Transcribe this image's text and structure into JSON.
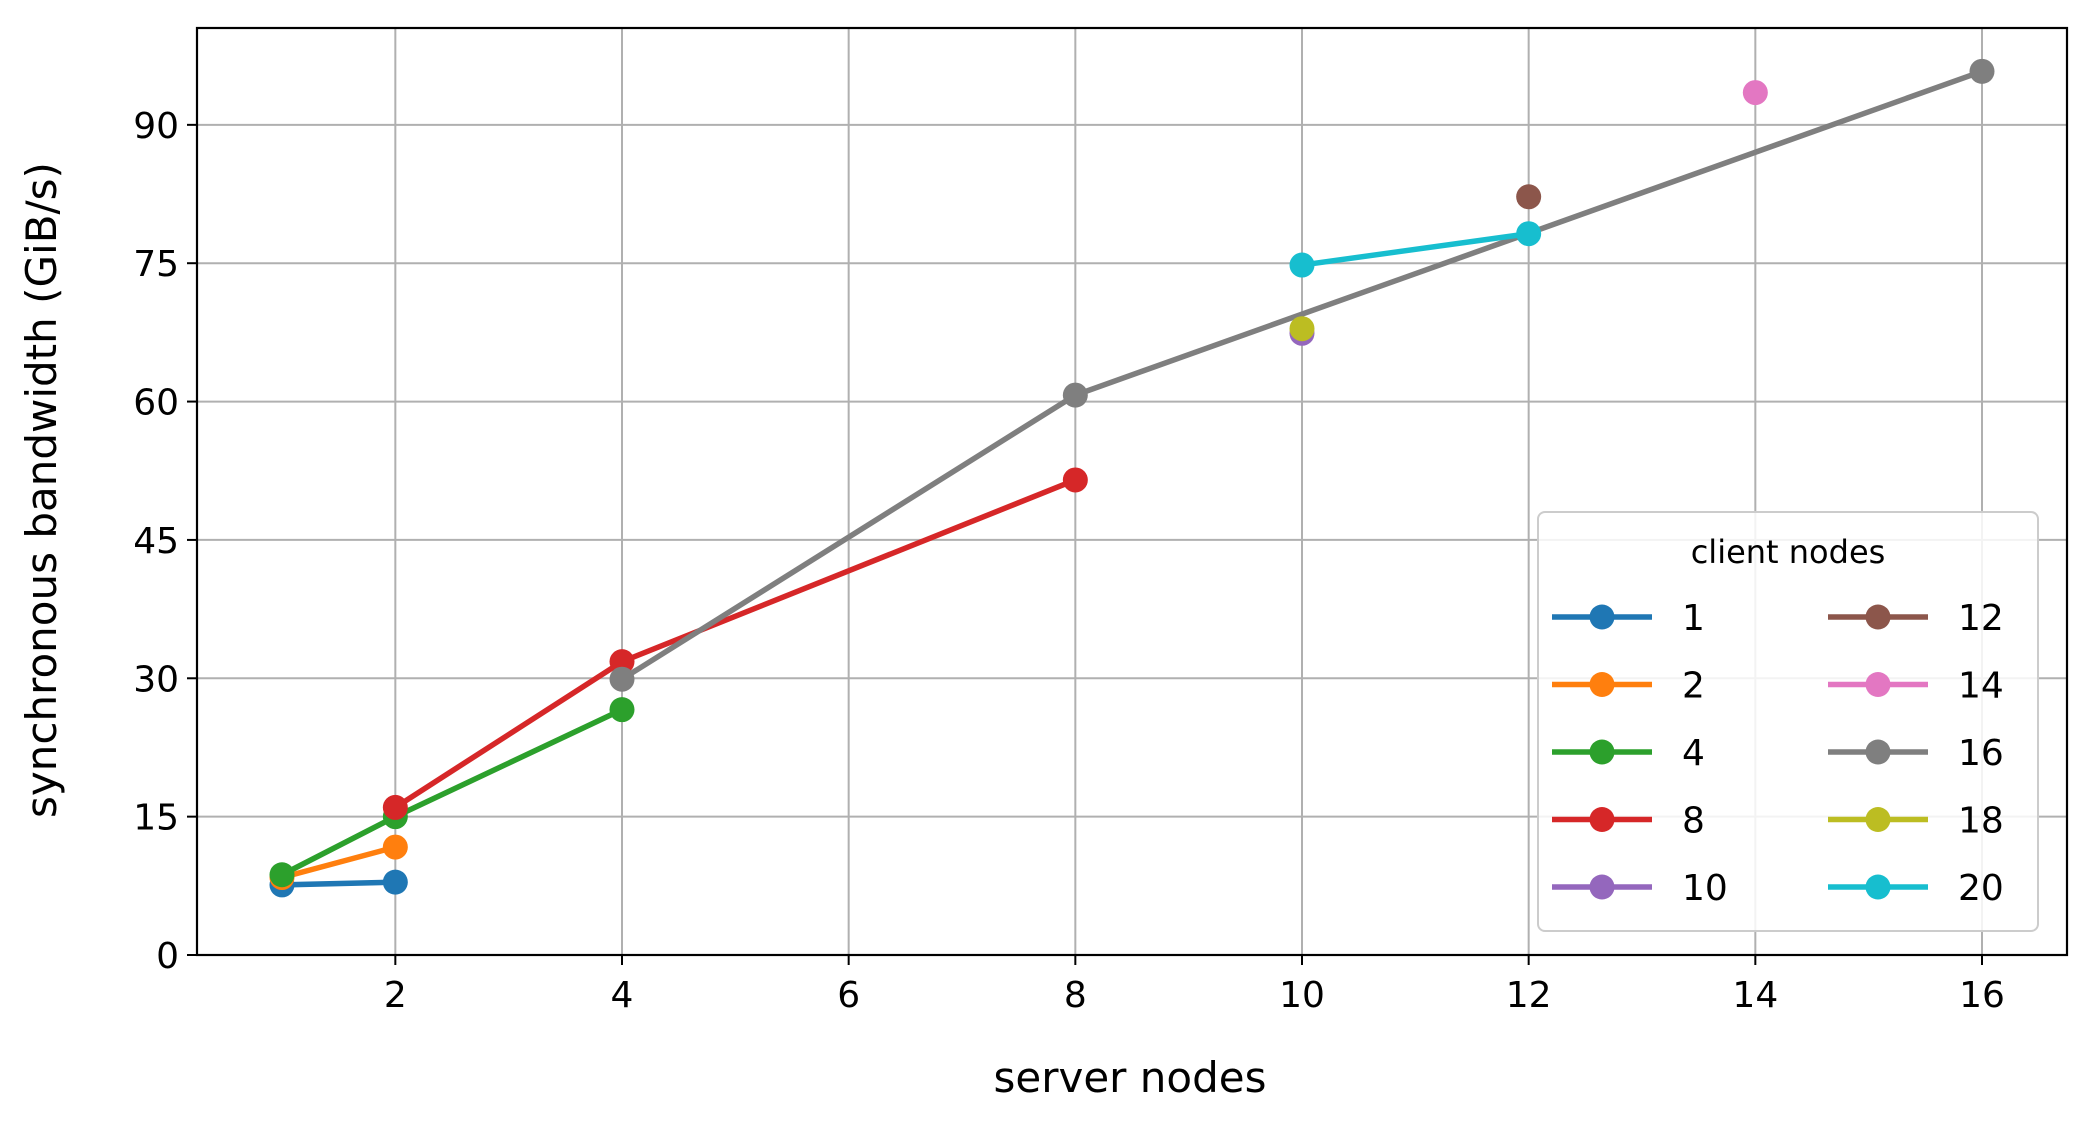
{
  "chart_data": {
    "type": "line",
    "xlabel": "server nodes",
    "ylabel": "synchronous bandwidth (GiB/s)",
    "xlim": [
      0.25,
      16.75
    ],
    "ylim": [
      0,
      100.5
    ],
    "xticks": [
      2,
      4,
      6,
      8,
      10,
      12,
      14,
      16
    ],
    "xtick_labels": [
      "2",
      "4",
      "6",
      "8",
      "10",
      "12",
      "14",
      "16"
    ],
    "yticks": [
      0,
      15,
      30,
      45,
      60,
      75,
      90
    ],
    "ytick_labels": [
      "0",
      "15",
      "30",
      "45",
      "60",
      "75",
      "90"
    ],
    "grid": true,
    "legend": {
      "title": "client nodes",
      "placement": "lower-right",
      "columns": 2
    },
    "series": [
      {
        "name": "1",
        "color": "#1f77b4",
        "x": [
          1,
          2
        ],
        "y": [
          7.6,
          7.9
        ]
      },
      {
        "name": "2",
        "color": "#ff7f0e",
        "x": [
          1,
          2
        ],
        "y": [
          8.4,
          11.7
        ]
      },
      {
        "name": "4",
        "color": "#2ca02c",
        "x": [
          1,
          2,
          4
        ],
        "y": [
          8.7,
          15.0,
          26.6
        ]
      },
      {
        "name": "8",
        "color": "#d62728",
        "x": [
          2,
          4,
          8
        ],
        "y": [
          16.0,
          31.8,
          51.5
        ]
      },
      {
        "name": "10",
        "color": "#9467bd",
        "x": [
          10
        ],
        "y": [
          67.4
        ]
      },
      {
        "name": "12",
        "color": "#8c564b",
        "x": [
          12
        ],
        "y": [
          82.2
        ]
      },
      {
        "name": "14",
        "color": "#e377c2",
        "x": [
          14
        ],
        "y": [
          93.5
        ]
      },
      {
        "name": "16",
        "color": "#7f7f7f",
        "x": [
          4,
          8,
          16
        ],
        "y": [
          29.9,
          60.7,
          95.8
        ]
      },
      {
        "name": "18",
        "color": "#bcbd22",
        "x": [
          10
        ],
        "y": [
          67.9
        ]
      },
      {
        "name": "20",
        "color": "#17becf",
        "x": [
          10,
          12
        ],
        "y": [
          74.8,
          78.2
        ]
      }
    ]
  }
}
